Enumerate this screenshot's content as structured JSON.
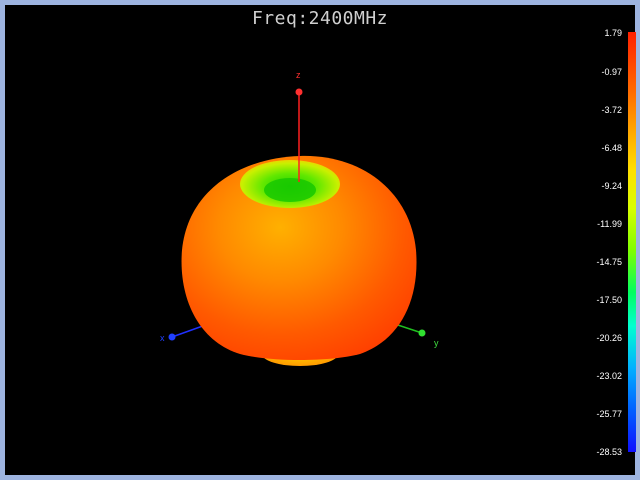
{
  "window": {
    "title": "Freq:2400MHz"
  },
  "axes": {
    "z_label": "z",
    "y_label": "y",
    "x_label": "x"
  },
  "colorbar": {
    "ticks": [
      "1.79",
      "-0.97",
      "-3.72",
      "-6.48",
      "-9.24",
      "-11.99",
      "-14.75",
      "-17.50",
      "-20.26",
      "-23.02",
      "-25.77",
      "-28.53"
    ],
    "max_color": "#ff2000",
    "min_color": "#1010ff"
  },
  "colors": {
    "background": "#000000",
    "frame": "#9db4e0",
    "pattern_main": "#ff5a00",
    "pattern_highlight": "#ffb000",
    "pattern_null": "#40e000"
  }
}
